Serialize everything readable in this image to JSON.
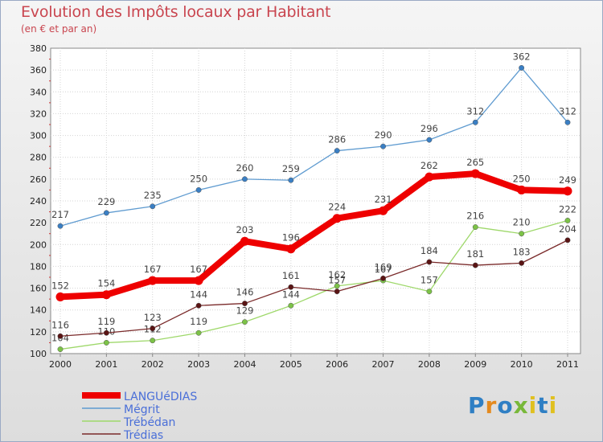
{
  "chart_data": {
    "type": "line",
    "title": "Evolution des Impôts locaux par Habitant",
    "subtitle": "(en € et par an)",
    "x": [
      "2000",
      "2001",
      "2002",
      "2003",
      "2004",
      "2005",
      "2006",
      "2007",
      "2008",
      "2009",
      "2010",
      "2011"
    ],
    "ylim": [
      100,
      380
    ],
    "yticks": [
      100,
      120,
      140,
      160,
      180,
      200,
      220,
      240,
      260,
      280,
      300,
      320,
      340,
      360,
      380
    ],
    "grid": true,
    "legend_position": "bottom-left",
    "series": [
      {
        "name": "LANGUéDIAS",
        "color": "#ee0000",
        "marker": "#ee0000",
        "bold": true,
        "values": [
          152,
          154,
          167,
          167,
          203,
          196,
          224,
          231,
          262,
          265,
          250,
          249
        ]
      },
      {
        "name": "Mégrit",
        "color": "#5f9bd0",
        "marker": "#3a7fc4",
        "bold": false,
        "values": [
          217,
          229,
          235,
          250,
          260,
          259,
          286,
          290,
          296,
          312,
          362,
          312
        ]
      },
      {
        "name": "Trébédan",
        "color": "#9ed86a",
        "marker": "#7cc247",
        "bold": false,
        "values": [
          104,
          110,
          112,
          119,
          129,
          144,
          162,
          167,
          157,
          216,
          210,
          222
        ]
      },
      {
        "name": "Trédias",
        "color": "#7a2a2a",
        "marker": "#5a1414",
        "bold": false,
        "values": [
          116,
          119,
          123,
          144,
          146,
          161,
          157,
          169,
          184,
          181,
          183,
          204
        ]
      }
    ]
  },
  "logo": {
    "text": "Proxiti",
    "letters": [
      "P",
      "r",
      "o",
      "x",
      "i",
      "t",
      "i"
    ]
  }
}
